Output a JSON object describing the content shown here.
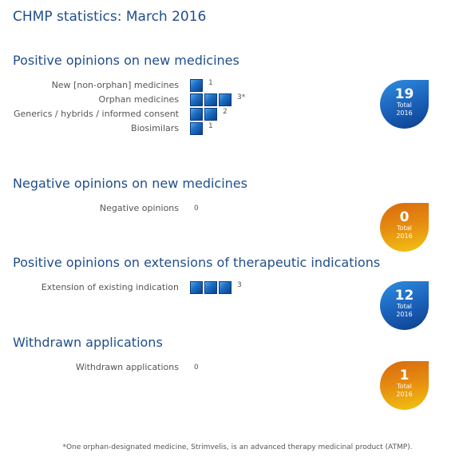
{
  "title": "CHMP statistics: March 2016",
  "colors": {
    "heading": "#1f4e8c",
    "square": "#1d70c4",
    "badge_blue": "#1a5fb8",
    "badge_orange": "#e58a10"
  },
  "chart_data": [
    {
      "type": "bar",
      "title": "Positive opinions on new medicines",
      "categories": [
        "New [non-orphan] medicines",
        "Orphan medicines",
        "Generics / hybrids / informed consent",
        "Biosimilars"
      ],
      "values": [
        1,
        3,
        2,
        1
      ],
      "count_labels": [
        "1",
        "3*",
        "2",
        "1"
      ],
      "total": {
        "number": "19",
        "label1": "Total",
        "label2": "2016",
        "color": "blue"
      }
    },
    {
      "type": "bar",
      "title": "Negative opinions on new medicines",
      "categories": [
        "Negative opinions"
      ],
      "values": [
        0
      ],
      "count_labels": [
        "0"
      ],
      "total": {
        "number": "0",
        "label1": "Total",
        "label2": "2016",
        "color": "orange"
      }
    },
    {
      "type": "bar",
      "title": "Positive opinions on extensions of therapeutic indications",
      "categories": [
        "Extension of existing indication"
      ],
      "values": [
        3
      ],
      "count_labels": [
        "3"
      ],
      "total": {
        "number": "12",
        "label1": "Total",
        "label2": "2016",
        "color": "blue"
      }
    },
    {
      "type": "bar",
      "title": "Withdrawn applications",
      "categories": [
        "Withdrawn applications"
      ],
      "values": [
        0
      ],
      "count_labels": [
        "0"
      ],
      "total": {
        "number": "1",
        "label1": "Total",
        "label2": "2016",
        "color": "orange"
      }
    }
  ],
  "footnote": "*One orphan-designated medicine, Strimvelis, is an advanced therapy medicinal product (ATMP)."
}
